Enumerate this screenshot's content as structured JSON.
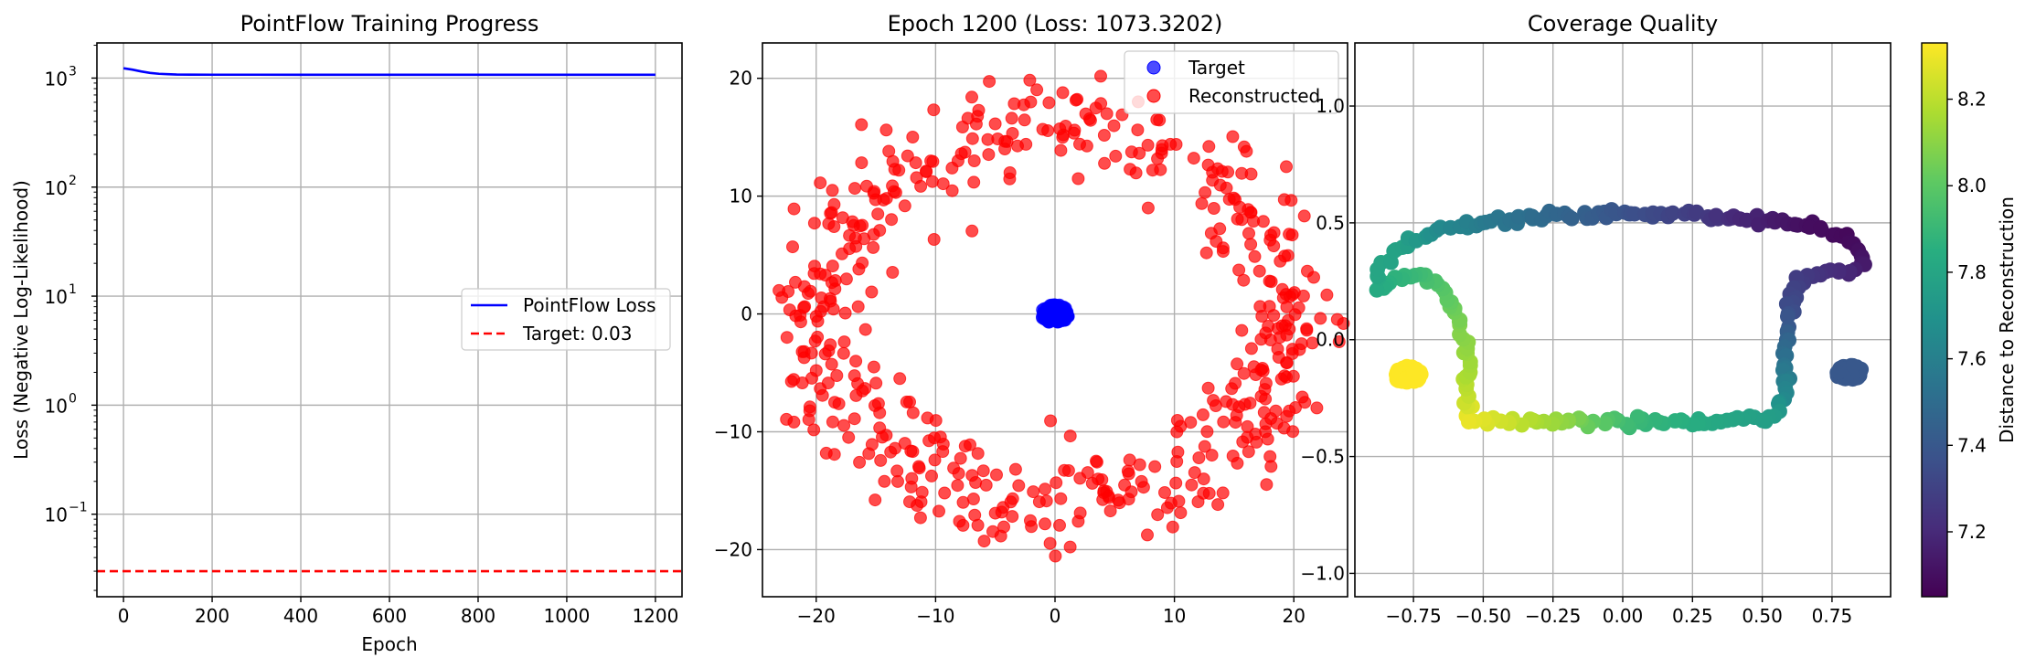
{
  "chart_data": [
    {
      "type": "line",
      "title": "PointFlow Training Progress",
      "xlabel": "Epoch",
      "ylabel": "Loss (Negative Log-Likelihood)",
      "xlim": [
        -60,
        1260
      ],
      "ylim": [
        0.0175,
        2100
      ],
      "yscale": "log",
      "xticks": [
        0,
        200,
        400,
        600,
        800,
        1000,
        1200
      ],
      "yticks": [
        {
          "value": 0.1,
          "base": "10",
          "exp": "−1"
        },
        {
          "value": 1,
          "base": "10",
          "exp": "0"
        },
        {
          "value": 10,
          "base": "10",
          "exp": "1"
        },
        {
          "value": 100,
          "base": "10",
          "exp": "2"
        },
        {
          "value": 1000,
          "base": "10",
          "exp": "3"
        }
      ],
      "grid": true,
      "legend_position": "center-right",
      "series": [
        {
          "name": "PointFlow Loss",
          "color": "#0000ff",
          "style": "solid",
          "x": [
            0,
            20,
            40,
            60,
            80,
            100,
            120,
            150,
            200,
            300,
            400,
            600,
            800,
            1000,
            1200
          ],
          "y": [
            1230,
            1195,
            1150,
            1115,
            1095,
            1085,
            1078,
            1075,
            1074,
            1074,
            1073.5,
            1073.5,
            1073.4,
            1073.3,
            1073.3
          ]
        },
        {
          "name": "Target: 0.03",
          "color": "#ff0000",
          "style": "dashed",
          "y_const": 0.03
        }
      ]
    },
    {
      "type": "scatter",
      "title": "Epoch 1200 (Loss: 1073.3202)",
      "xlim": [
        -24.5,
        24.5
      ],
      "ylim": [
        -24,
        23
      ],
      "xticks": [
        -20,
        -10,
        0,
        10,
        20
      ],
      "yticks": [
        -20,
        -10,
        0,
        10,
        20
      ],
      "xtick_labels": [
        "−20",
        "−10",
        "0",
        "10",
        "20"
      ],
      "ytick_labels": [
        "−20",
        "−10",
        "0",
        "10",
        "20"
      ],
      "grid": true,
      "legend_position": "top-right",
      "series": [
        {
          "name": "Target",
          "color": "#0000ff",
          "shape": "ellipse",
          "center": [
            0,
            0
          ],
          "radius": [
            1.2,
            0.8
          ],
          "count": 120
        },
        {
          "name": "Reconstructed",
          "color": "#ff0000",
          "shape": "noisy-ring",
          "center": [
            0,
            0
          ],
          "radius": [
            19.5,
            16
          ],
          "noise": 2.2,
          "count": 520
        }
      ]
    },
    {
      "type": "scatter",
      "title": "Coverage Quality",
      "xlim": [
        -0.96,
        0.96
      ],
      "ylim": [
        -1.1,
        1.27
      ],
      "xticks": [
        -0.75,
        -0.5,
        -0.25,
        0,
        0.25,
        0.5,
        0.75
      ],
      "yticks": [
        -1.0,
        -0.5,
        0.0,
        0.5,
        1.0
      ],
      "xtick_labels": [
        "−0.75",
        "−0.50",
        "−0.25",
        "0.00",
        "0.25",
        "0.50",
        "0.75"
      ],
      "ytick_labels": [
        "−1.0",
        "−0.5",
        "0.0",
        "0.5",
        "1.0"
      ],
      "grid": true,
      "colormap": "viridis",
      "color_range": [
        7.05,
        8.33
      ],
      "colorbar_label": "Distance to Reconstruction",
      "colorbar_ticks": [
        7.2,
        7.4,
        7.6,
        7.8,
        8.0,
        8.2
      ],
      "colorbar_tick_labels": [
        "7.2",
        "7.4",
        "7.6",
        "7.8",
        "8.0",
        "8.2"
      ],
      "path": [
        {
          "x": -0.56,
          "y": -0.33,
          "c": 8.3
        },
        {
          "x": -0.55,
          "y": -0.22,
          "c": 8.2
        },
        {
          "x": -0.55,
          "y": -0.1,
          "c": 8.15
        },
        {
          "x": -0.58,
          "y": 0.05,
          "c": 8.08
        },
        {
          "x": -0.64,
          "y": 0.2,
          "c": 8.0
        },
        {
          "x": -0.72,
          "y": 0.28,
          "c": 7.92
        },
        {
          "x": -0.82,
          "y": 0.26,
          "c": 7.87
        },
        {
          "x": -0.88,
          "y": 0.22,
          "c": 7.83
        },
        {
          "x": -0.88,
          "y": 0.3,
          "c": 7.8
        },
        {
          "x": -0.8,
          "y": 0.4,
          "c": 7.78
        },
        {
          "x": -0.65,
          "y": 0.47,
          "c": 7.65
        },
        {
          "x": -0.45,
          "y": 0.51,
          "c": 7.55
        },
        {
          "x": -0.25,
          "y": 0.53,
          "c": 7.48
        },
        {
          "x": 0.0,
          "y": 0.54,
          "c": 7.38
        },
        {
          "x": 0.25,
          "y": 0.535,
          "c": 7.28
        },
        {
          "x": 0.45,
          "y": 0.52,
          "c": 7.18
        },
        {
          "x": 0.65,
          "y": 0.49,
          "c": 7.1
        },
        {
          "x": 0.8,
          "y": 0.44,
          "c": 7.08
        },
        {
          "x": 0.85,
          "y": 0.38,
          "c": 7.1
        },
        {
          "x": 0.86,
          "y": 0.3,
          "c": 7.14
        },
        {
          "x": 0.82,
          "y": 0.28,
          "c": 7.18
        },
        {
          "x": 0.73,
          "y": 0.3,
          "c": 7.22
        },
        {
          "x": 0.63,
          "y": 0.25,
          "c": 7.28
        },
        {
          "x": 0.6,
          "y": 0.12,
          "c": 7.35
        },
        {
          "x": 0.59,
          "y": 0.0,
          "c": 7.45
        },
        {
          "x": 0.58,
          "y": -0.12,
          "c": 7.55
        },
        {
          "x": 0.58,
          "y": -0.25,
          "c": 7.65
        },
        {
          "x": 0.55,
          "y": -0.33,
          "c": 7.75
        },
        {
          "x": 0.3,
          "y": -0.35,
          "c": 7.82
        },
        {
          "x": 0.0,
          "y": -0.35,
          "c": 7.92
        },
        {
          "x": -0.2,
          "y": -0.35,
          "c": 8.1
        },
        {
          "x": -0.4,
          "y": -0.35,
          "c": 8.22
        },
        {
          "x": -0.56,
          "y": -0.33,
          "c": 8.3
        }
      ],
      "clusters": [
        {
          "x": -0.77,
          "y": -0.15,
          "c": 8.33,
          "rx": 0.05,
          "ry": 0.035
        },
        {
          "x": 0.81,
          "y": -0.14,
          "c": 7.4,
          "rx": 0.05,
          "ry": 0.03
        }
      ]
    }
  ]
}
